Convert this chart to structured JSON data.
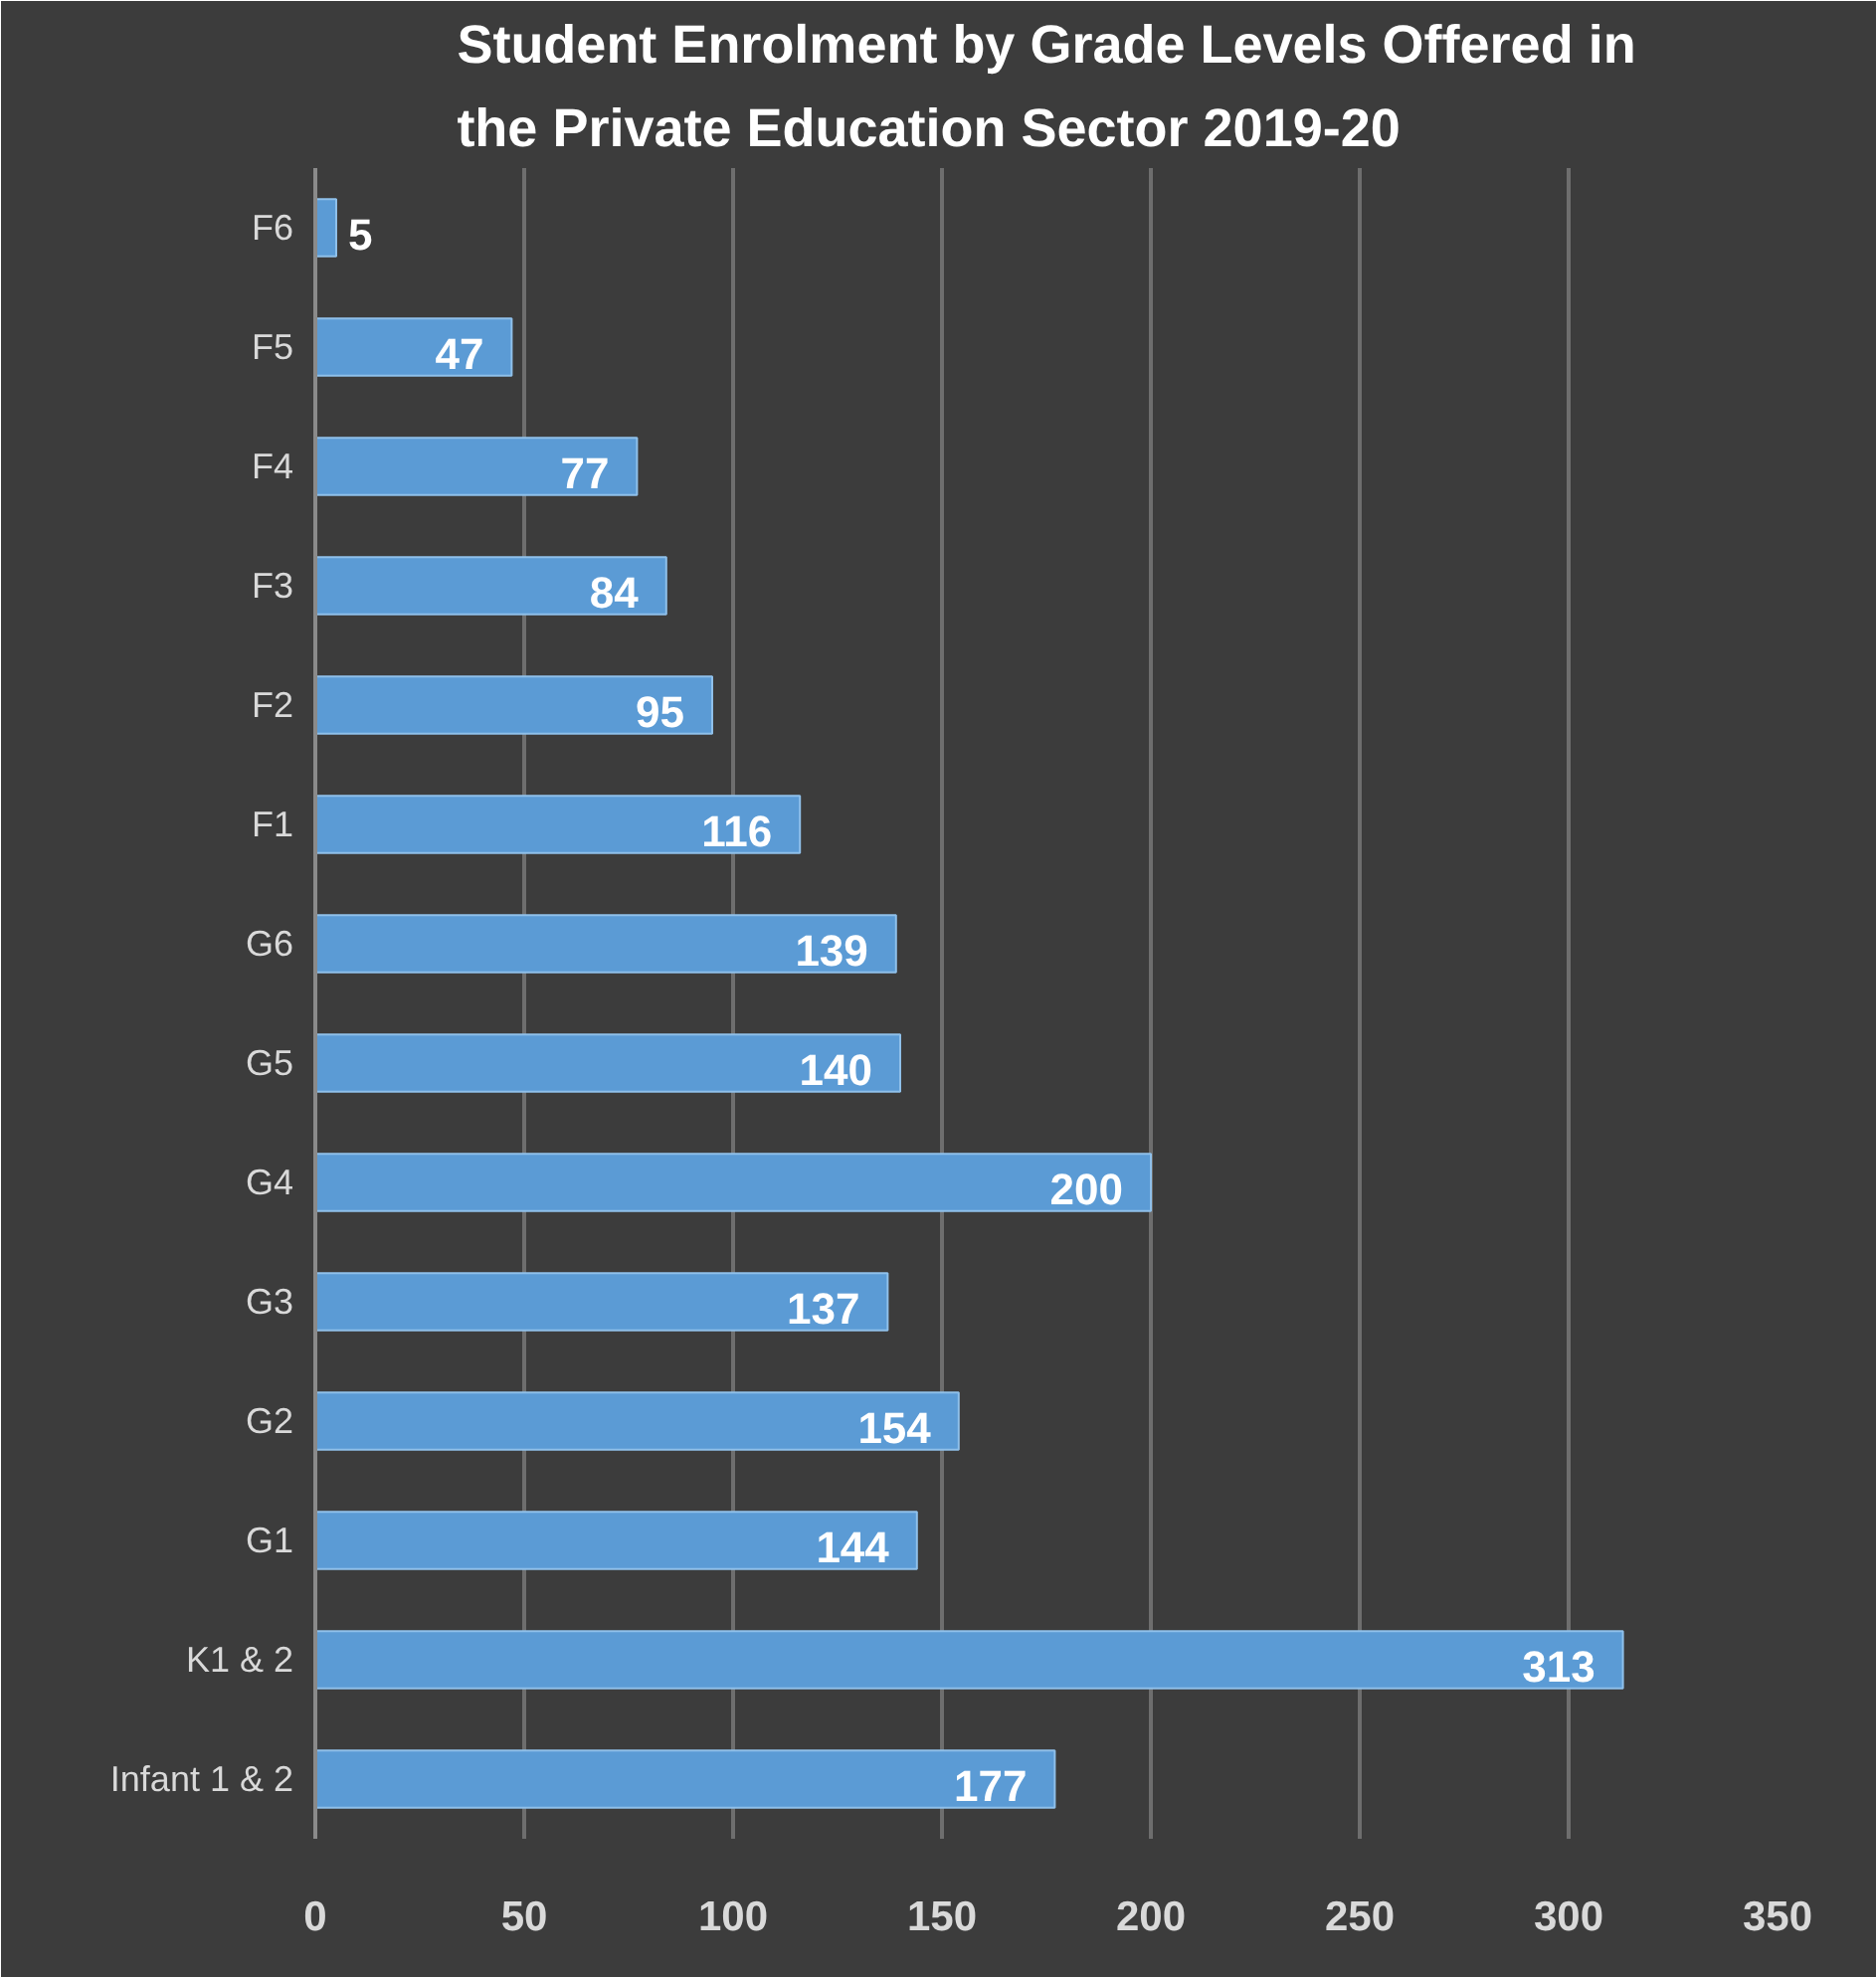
{
  "chart_data": {
    "type": "bar",
    "orientation": "horizontal",
    "title": "Student Enrolment by Grade Levels Offered in the Private Education Sector 2019-20",
    "categories": [
      "F6",
      "F5",
      "F4",
      "F3",
      "F2",
      "F1",
      "G6",
      "G5",
      "G4",
      "G3",
      "G2",
      "G1",
      "K1 & 2",
      "Infant 1 & 2"
    ],
    "values": [
      5,
      47,
      77,
      84,
      95,
      116,
      139,
      140,
      200,
      137,
      154,
      144,
      313,
      177
    ],
    "color": "#5b9bd5",
    "xlim": [
      0,
      350
    ],
    "xticks": [
      0,
      50,
      100,
      150,
      200,
      250,
      300,
      350
    ],
    "grid": "x",
    "data_labels": true
  }
}
